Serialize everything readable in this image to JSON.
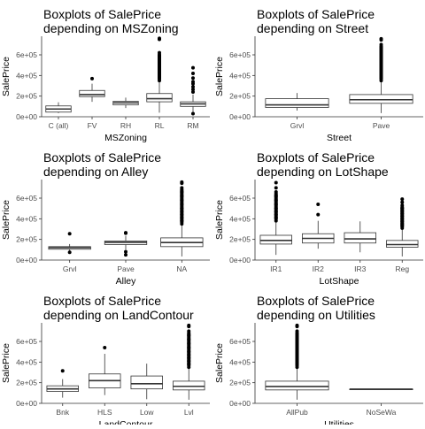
{
  "chart_data": [
    {
      "type": "boxplot",
      "title": "Boxplots of SalePrice\n depending on MSZoning",
      "xlabel": "MSZoning",
      "ylabel": "SalePrice",
      "ylim": [
        0,
        780000
      ],
      "yticks": [
        0,
        200000,
        400000,
        600000
      ],
      "ytick_labels": [
        "0e+00",
        "2e+05",
        "4e+05",
        "6e+05"
      ],
      "categories": [
        "C (all)",
        "FV",
        "RH",
        "RL",
        "RM"
      ],
      "boxes": [
        {
          "q1": 45000,
          "median": 75000,
          "q3": 105000,
          "lo": 35000,
          "hi": 140000,
          "outliers": [],
          "dense": false
        },
        {
          "q1": 195000,
          "median": 215000,
          "q3": 255000,
          "lo": 145000,
          "hi": 320000,
          "outliers": [
            370000
          ],
          "dense": false
        },
        {
          "q1": 115000,
          "median": 135000,
          "q3": 150000,
          "lo": 85000,
          "hi": 185000,
          "outliers": [],
          "dense": false
        },
        {
          "q1": 145000,
          "median": 175000,
          "q3": 225000,
          "lo": 40000,
          "hi": 340000,
          "outliers": [
            350000,
            375000,
            400000,
            425000,
            450000,
            480000,
            500000,
            540000,
            580000,
            620000,
            750000,
            760000
          ],
          "dense": true
        },
        {
          "q1": 100000,
          "median": 125000,
          "q3": 145000,
          "lo": 37000,
          "hi": 215000,
          "outliers": [
            30000,
            240000,
            265000,
            290000,
            320000,
            340000,
            375000,
            420000,
            475000
          ],
          "dense": false
        }
      ]
    },
    {
      "type": "boxplot",
      "title": "Boxplots of SalePrice\n depending on Street",
      "xlabel": "Street",
      "ylabel": "SalePrice",
      "ylim": [
        0,
        780000
      ],
      "yticks": [
        0,
        200000,
        400000,
        600000
      ],
      "ytick_labels": [
        "0e+00",
        "2e+05",
        "4e+05",
        "6e+05"
      ],
      "categories": [
        "Grvl",
        "Pave"
      ],
      "boxes": [
        {
          "q1": 90000,
          "median": 115000,
          "q3": 175000,
          "lo": 60000,
          "hi": 230000,
          "outliers": [],
          "dense": false
        },
        {
          "q1": 130000,
          "median": 165000,
          "q3": 215000,
          "lo": 35000,
          "hi": 340000,
          "outliers": [
            350000,
            380000,
            410000,
            440000,
            470000,
            500000,
            540000,
            580000,
            620000,
            660000,
            700000,
            745000,
            755000
          ],
          "dense": true
        }
      ]
    },
    {
      "type": "boxplot",
      "title": "Boxplots of SalePrice\n depending on Alley",
      "xlabel": "Alley",
      "ylabel": "SalePrice",
      "ylim": [
        0,
        780000
      ],
      "yticks": [
        0,
        200000,
        400000,
        600000
      ],
      "ytick_labels": [
        "0e+00",
        "2e+05",
        "4e+05",
        "6e+05"
      ],
      "categories": [
        "Grvl",
        "Pave",
        "NA"
      ],
      "boxes": [
        {
          "q1": 105000,
          "median": 120000,
          "q3": 130000,
          "lo": 80000,
          "hi": 155000,
          "outliers": [
            75000,
            255000
          ],
          "dense": false
        },
        {
          "q1": 150000,
          "median": 172000,
          "q3": 185000,
          "lo": 100000,
          "hi": 235000,
          "outliers": [
            50000,
            80000,
            260000,
            265000
          ],
          "dense": false
        },
        {
          "q1": 130000,
          "median": 170000,
          "q3": 215000,
          "lo": 35000,
          "hi": 340000,
          "outliers": [
            350000,
            380000,
            410000,
            440000,
            470000,
            500000,
            540000,
            580000,
            620000,
            660000,
            700000,
            745000,
            755000
          ],
          "dense": true
        }
      ]
    },
    {
      "type": "boxplot",
      "title": "Boxplots of SalePrice\n depending on LotShape",
      "xlabel": "LotShape",
      "ylabel": "SalePrice",
      "ylim": [
        0,
        780000
      ],
      "yticks": [
        0,
        200000,
        400000,
        600000
      ],
      "ytick_labels": [
        "0e+00",
        "2e+05",
        "4e+05",
        "6e+05"
      ],
      "categories": [
        "IR1",
        "IR2",
        "IR3",
        "Reg"
      ],
      "boxes": [
        {
          "q1": 155000,
          "median": 190000,
          "q3": 240000,
          "lo": 50000,
          "hi": 365000,
          "outliers": [
            380000,
            410000,
            440000,
            470000,
            500000,
            540000,
            580000,
            620000,
            660000,
            700000,
            750000
          ],
          "dense": true
        },
        {
          "q1": 165000,
          "median": 210000,
          "q3": 255000,
          "lo": 110000,
          "hi": 380000,
          "outliers": [
            440000,
            540000
          ],
          "dense": false
        },
        {
          "q1": 165000,
          "median": 205000,
          "q3": 265000,
          "lo": 75000,
          "hi": 375000,
          "outliers": [],
          "dense": false
        },
        {
          "q1": 125000,
          "median": 150000,
          "q3": 190000,
          "lo": 35000,
          "hi": 300000,
          "outliers": [
            310000,
            330000,
            350000,
            375000,
            400000,
            425000,
            450000,
            475000,
            500000,
            530000,
            560000,
            590000
          ],
          "dense": true
        }
      ]
    },
    {
      "type": "boxplot",
      "title": "Boxplots of SalePrice\n depending on LandContour",
      "xlabel": "LandContour",
      "ylabel": "SalePrice",
      "ylim": [
        0,
        780000
      ],
      "yticks": [
        0,
        200000,
        400000,
        600000
      ],
      "ytick_labels": [
        "0e+00",
        "2e+05",
        "4e+05",
        "6e+05"
      ],
      "categories": [
        "Bnk",
        "HLS",
        "Low",
        "Lvl"
      ],
      "boxes": [
        {
          "q1": 115000,
          "median": 140000,
          "q3": 170000,
          "lo": 55000,
          "hi": 235000,
          "outliers": [
            315000
          ],
          "dense": false
        },
        {
          "q1": 150000,
          "median": 220000,
          "q3": 285000,
          "lo": 80000,
          "hi": 480000,
          "outliers": [
            540000
          ],
          "dense": false
        },
        {
          "q1": 140000,
          "median": 190000,
          "q3": 265000,
          "lo": 40000,
          "hi": 385000,
          "outliers": [],
          "dense": false
        },
        {
          "q1": 130000,
          "median": 165000,
          "q3": 215000,
          "lo": 35000,
          "hi": 340000,
          "outliers": [
            350000,
            380000,
            410000,
            440000,
            470000,
            500000,
            540000,
            580000,
            620000,
            660000,
            700000,
            745000,
            755000
          ],
          "dense": true
        }
      ]
    },
    {
      "type": "boxplot",
      "title": "Boxplots of SalePrice\n depending on Utilities",
      "xlabel": "Utilities",
      "ylabel": "SalePrice",
      "ylim": [
        0,
        780000
      ],
      "yticks": [
        0,
        200000,
        400000,
        600000
      ],
      "ytick_labels": [
        "0e+00",
        "2e+05",
        "4e+05",
        "6e+05"
      ],
      "categories": [
        "AllPub",
        "NoSeWa"
      ],
      "boxes": [
        {
          "q1": 130000,
          "median": 163000,
          "q3": 215000,
          "lo": 35000,
          "hi": 340000,
          "outliers": [
            350000,
            380000,
            410000,
            440000,
            470000,
            500000,
            540000,
            580000,
            620000,
            660000,
            700000,
            745000,
            755000
          ],
          "dense": true
        },
        {
          "q1": 137500,
          "median": 137500,
          "q3": 137500,
          "lo": 137500,
          "hi": 137500,
          "outliers": [],
          "dense": false
        }
      ]
    }
  ]
}
